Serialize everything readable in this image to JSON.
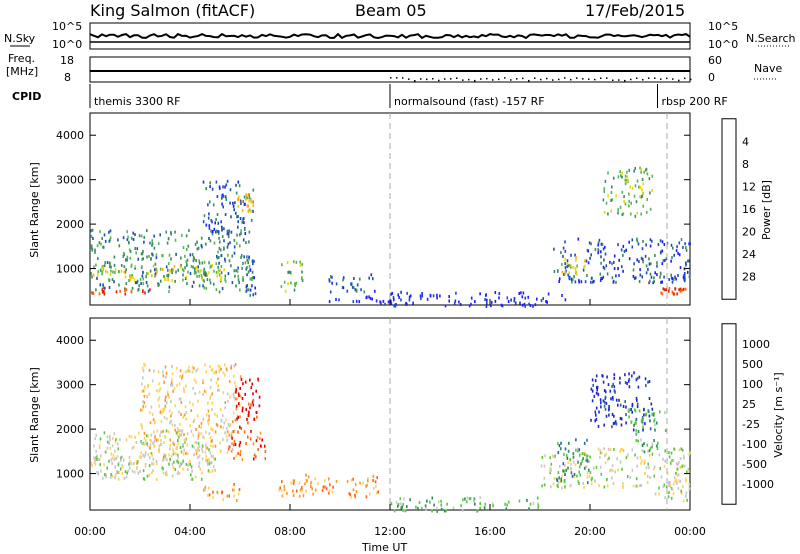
{
  "header": {
    "station": "King Salmon (fitACF)",
    "beam": "Beam 05",
    "date": "17/Feb/2015"
  },
  "strips": {
    "nsky_label": "N.Sky",
    "nsky_ticks": [
      "10^5",
      "10^0"
    ],
    "nsearch_label": "N.Search",
    "nsearch_ticks": [
      "10^5",
      "10^0"
    ],
    "freq_label_1": "Freq.",
    "freq_label_2": "[MHz]",
    "freq_ticks": [
      "18",
      "8"
    ],
    "nave_label": "Nave",
    "nave_ticks": [
      "60",
      "0"
    ],
    "cpid_label": "CPID",
    "cpid_segments": [
      {
        "label": "themis 3300 RF",
        "start_h": 0
      },
      {
        "label": "normalsound (fast) -157 RF",
        "start_h": 12
      },
      {
        "label": "rbsp 200 RF",
        "start_h": 22.7
      }
    ]
  },
  "time_axis": {
    "label": "Time UT",
    "ticks": [
      "00:00",
      "04:00",
      "08:00",
      "12:00",
      "16:00",
      "20:00",
      "00:00"
    ]
  },
  "chart_data": [
    {
      "type": "heatmap",
      "name": "power",
      "ylabel": "Slant Range [km]",
      "x_range_hours": [
        0,
        24
      ],
      "ylim": [
        180,
        4500
      ],
      "yticks": [
        1000,
        2000,
        3000,
        4000
      ],
      "colorbar_label": "Power [dB]",
      "colorbar_ticks": [
        "4",
        "8",
        "12",
        "16",
        "20",
        "24",
        "28"
      ],
      "colorbar_colors": [
        "#1e1eff",
        "#1e50b4",
        "#3c8c64",
        "#5ab45a",
        "#e6dc00",
        "#ffb400",
        "#ff6400",
        "#e61e00"
      ],
      "regions": [
        {
          "t": [
            0,
            6.5
          ],
          "r": [
            500,
            1900
          ],
          "level": 2
        },
        {
          "t": [
            0,
            5.5
          ],
          "r": [
            750,
            1100
          ],
          "level": 4
        },
        {
          "t": [
            0,
            2.5
          ],
          "r": [
            450,
            560
          ],
          "level": 7
        },
        {
          "t": [
            4.5,
            6.5
          ],
          "r": [
            1800,
            3000
          ],
          "level": 1
        },
        {
          "t": [
            5.8,
            6.5
          ],
          "r": [
            2300,
            2700
          ],
          "level": 5
        },
        {
          "t": [
            6.2,
            6.6
          ],
          "r": [
            400,
            1300
          ],
          "level": 1
        },
        {
          "t": [
            7.5,
            8.5
          ],
          "r": [
            500,
            1200
          ],
          "level": 3
        },
        {
          "t": [
            9.5,
            11.5
          ],
          "r": [
            500,
            900
          ],
          "level": 1
        },
        {
          "t": [
            9.5,
            12.5
          ],
          "r": [
            180,
            400
          ],
          "level": 0
        },
        {
          "t": [
            12,
            19
          ],
          "r": [
            180,
            500
          ],
          "level": 0
        },
        {
          "t": [
            18.5,
            24
          ],
          "r": [
            700,
            1700
          ],
          "level": 1
        },
        {
          "t": [
            18.7,
            19.8
          ],
          "r": [
            900,
            1300
          ],
          "level": 4
        },
        {
          "t": [
            20.5,
            22.5
          ],
          "r": [
            2200,
            3300
          ],
          "level": 3
        },
        {
          "t": [
            22.8,
            23.8
          ],
          "r": [
            450,
            600
          ],
          "level": 7
        }
      ]
    },
    {
      "type": "heatmap",
      "name": "velocity",
      "ylabel": "Slant Range [km]",
      "x_range_hours": [
        0,
        24
      ],
      "ylim": [
        180,
        4500
      ],
      "yticks": [
        1000,
        2000,
        3000,
        4000
      ],
      "colorbar_label": "Velocity [m s⁻¹]",
      "colorbar_ticks": [
        "1000",
        "500",
        "100",
        "25",
        "-25",
        "-100",
        "-500",
        "-1000"
      ],
      "colorbar_colors": [
        "#1e28c8",
        "#2864a0",
        "#2d8c5a",
        "#5ac83c",
        "#c8c8c8",
        "#ffd25a",
        "#ff9628",
        "#ff6414",
        "#e60000"
      ],
      "regions": [
        {
          "t": [
            0,
            5
          ],
          "r": [
            900,
            2000
          ],
          "level": 4
        },
        {
          "t": [
            0,
            5
          ],
          "r": [
            1000,
            1400
          ],
          "level": 4
        },
        {
          "t": [
            2,
            6
          ],
          "r": [
            1400,
            3500
          ],
          "level": 5
        },
        {
          "t": [
            5.8,
            6.8
          ],
          "r": [
            2000,
            3200
          ],
          "level": 8
        },
        {
          "t": [
            5.5,
            7
          ],
          "r": [
            1300,
            2000
          ],
          "level": 7
        },
        {
          "t": [
            4.5,
            6
          ],
          "r": [
            400,
            800
          ],
          "level": 6
        },
        {
          "t": [
            7.5,
            8.5
          ],
          "r": [
            500,
            900
          ],
          "level": 6
        },
        {
          "t": [
            8.5,
            11.5
          ],
          "r": [
            500,
            1000
          ],
          "level": 6
        },
        {
          "t": [
            12,
            18
          ],
          "r": [
            180,
            500
          ],
          "level": 3
        },
        {
          "t": [
            18,
            24
          ],
          "r": [
            700,
            1600
          ],
          "level": 4
        },
        {
          "t": [
            18.6,
            20
          ],
          "r": [
            800,
            1800
          ],
          "level": 2
        },
        {
          "t": [
            20,
            22.5
          ],
          "r": [
            2000,
            3300
          ],
          "level": 0
        },
        {
          "t": [
            21.5,
            23
          ],
          "r": [
            1500,
            2500
          ],
          "level": 3
        },
        {
          "t": [
            22.5,
            24
          ],
          "r": [
            400,
            900
          ],
          "level": 4
        }
      ]
    }
  ]
}
